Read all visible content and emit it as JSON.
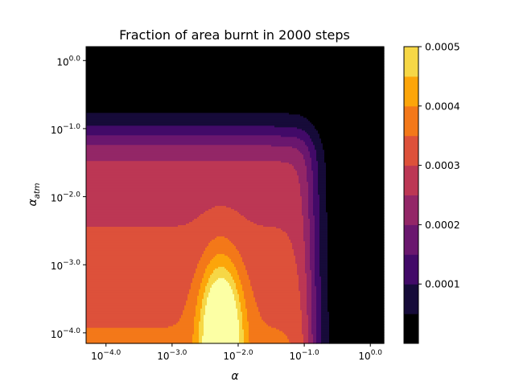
{
  "chart_data": {
    "type": "heatmap",
    "title": "Fraction of area burnt in 2000 steps",
    "xlabel": "α",
    "ylabel_base": "α",
    "ylabel_sub": "atm",
    "x_scale": "log",
    "y_scale": "log",
    "xlim": [
      5e-05,
      1.6
    ],
    "ylim": [
      7e-05,
      1.6
    ],
    "x_ticks": [
      {
        "value": 0.0001,
        "base": "10",
        "exp": "−4.0"
      },
      {
        "value": 0.001,
        "base": "10",
        "exp": "−3.0"
      },
      {
        "value": 0.01,
        "base": "10",
        "exp": "−2.0"
      },
      {
        "value": 0.1,
        "base": "10",
        "exp": "−1.0"
      },
      {
        "value": 1.0,
        "base": "10",
        "exp": "0.0"
      }
    ],
    "y_ticks": [
      {
        "value": 0.0001,
        "base": "10",
        "exp": "−4.0"
      },
      {
        "value": 0.001,
        "base": "10",
        "exp": "−3.0"
      },
      {
        "value": 0.01,
        "base": "10",
        "exp": "−2.0"
      },
      {
        "value": 0.1,
        "base": "10",
        "exp": "−1.0"
      },
      {
        "value": 1.0,
        "base": "10",
        "exp": "0.0"
      }
    ],
    "colormap": "inferno",
    "levels": [
      0,
      5e-05,
      0.0001,
      0.00015,
      0.0002,
      0.00025,
      0.0003,
      0.00035,
      0.0004,
      0.00045,
      0.0005
    ],
    "colors": [
      "#000000",
      "#160b39",
      "#420a68",
      "#6a176e",
      "#932667",
      "#bc3754",
      "#dd513a",
      "#f37819",
      "#fca50a",
      "#f6d746",
      "#fcffa4"
    ],
    "colorbar_ticks": [
      "0.0001",
      "0.0002",
      "0.0003",
      "0.0004",
      "0.0005"
    ],
    "colorbar_tick_values": [
      0.0001,
      0.0002,
      0.0003,
      0.0004,
      0.0005
    ],
    "peak": {
      "x": 0.0055,
      "y": 0.0001,
      "value": 0.00052
    },
    "approx_threshold_alpha": 0.12,
    "approx_threshold_alpha_atm": 0.07
  }
}
